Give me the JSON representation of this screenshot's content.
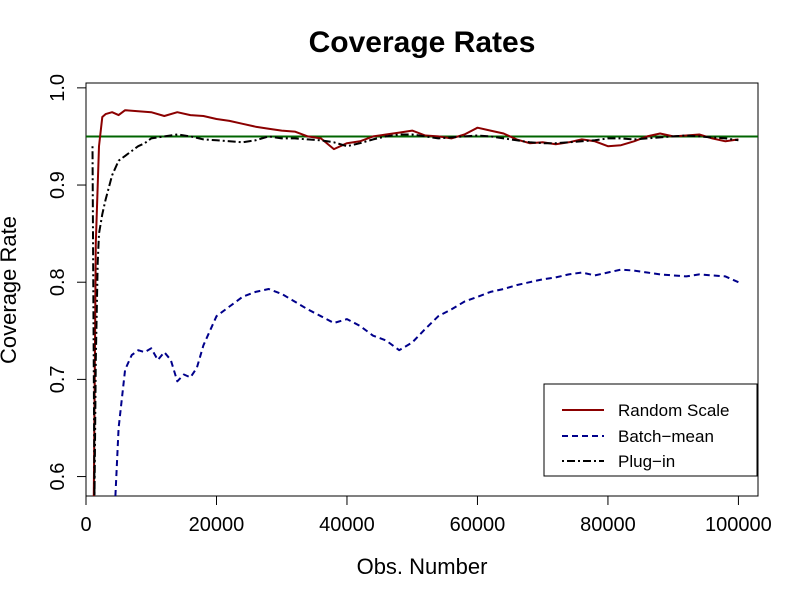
{
  "chart_data": {
    "type": "line",
    "title": "Coverage Rates",
    "xlabel": "Obs. Number",
    "ylabel": "Coverage Rate",
    "xlim": [
      0,
      103000
    ],
    "ylim": [
      0.58,
      1.005
    ],
    "xticks": [
      0,
      20000,
      40000,
      60000,
      80000,
      100000
    ],
    "xtick_labels": [
      "0",
      "20000",
      "40000",
      "60000",
      "80000",
      "100000"
    ],
    "yticks": [
      0.6,
      0.7,
      0.8,
      0.9,
      1.0
    ],
    "ytick_labels": [
      "0.6",
      "0.7",
      "0.8",
      "0.9",
      "1.0"
    ],
    "grid": false,
    "legend_position": "bottom-right",
    "reference_line": {
      "y": 0.95,
      "color": "#006400"
    },
    "series": [
      {
        "name": "Random Scale",
        "color": "#8b0000",
        "style": "solid",
        "x": [
          1200,
          1500,
          2000,
          2500,
          3000,
          4000,
          5000,
          6000,
          8000,
          10000,
          12000,
          14000,
          16000,
          18000,
          20000,
          22000,
          24000,
          26000,
          28000,
          30000,
          32000,
          34000,
          36000,
          38000,
          40000,
          42000,
          44000,
          46000,
          48000,
          50000,
          52000,
          54000,
          56000,
          58000,
          60000,
          62000,
          64000,
          66000,
          68000,
          70000,
          72000,
          74000,
          76000,
          78000,
          80000,
          82000,
          84000,
          86000,
          88000,
          90000,
          92000,
          94000,
          96000,
          98000,
          100000
        ],
        "values": [
          0.58,
          0.84,
          0.94,
          0.97,
          0.973,
          0.975,
          0.972,
          0.977,
          0.976,
          0.975,
          0.971,
          0.975,
          0.972,
          0.971,
          0.968,
          0.966,
          0.963,
          0.96,
          0.958,
          0.956,
          0.955,
          0.95,
          0.948,
          0.937,
          0.943,
          0.945,
          0.95,
          0.952,
          0.954,
          0.956,
          0.951,
          0.95,
          0.948,
          0.952,
          0.959,
          0.956,
          0.953,
          0.947,
          0.943,
          0.944,
          0.942,
          0.944,
          0.947,
          0.945,
          0.94,
          0.941,
          0.945,
          0.95,
          0.953,
          0.95,
          0.951,
          0.952,
          0.948,
          0.945,
          0.947
        ]
      },
      {
        "name": "Batch−mean",
        "color": "#00008b",
        "style": "dashed",
        "x": [
          4500,
          5000,
          6000,
          7000,
          8000,
          9000,
          10000,
          11000,
          12000,
          13000,
          14000,
          15000,
          16000,
          17000,
          18000,
          20000,
          22000,
          24000,
          26000,
          28000,
          30000,
          32000,
          34000,
          36000,
          38000,
          40000,
          42000,
          44000,
          46000,
          48000,
          50000,
          52000,
          54000,
          56000,
          58000,
          60000,
          62000,
          64000,
          66000,
          68000,
          70000,
          72000,
          74000,
          76000,
          78000,
          80000,
          82000,
          84000,
          86000,
          88000,
          90000,
          92000,
          94000,
          96000,
          98000,
          100000
        ],
        "values": [
          0.58,
          0.65,
          0.71,
          0.725,
          0.73,
          0.728,
          0.732,
          0.72,
          0.728,
          0.72,
          0.698,
          0.705,
          0.702,
          0.712,
          0.735,
          0.765,
          0.775,
          0.785,
          0.79,
          0.793,
          0.788,
          0.78,
          0.772,
          0.765,
          0.758,
          0.762,
          0.755,
          0.745,
          0.74,
          0.73,
          0.738,
          0.752,
          0.765,
          0.772,
          0.78,
          0.785,
          0.79,
          0.793,
          0.797,
          0.8,
          0.803,
          0.805,
          0.808,
          0.81,
          0.807,
          0.81,
          0.813,
          0.812,
          0.81,
          0.808,
          0.807,
          0.806,
          0.808,
          0.807,
          0.806,
          0.8
        ]
      },
      {
        "name": "Plug−in",
        "color": "#000000",
        "style": "dotdash",
        "x": [
          1000,
          1300,
          1500,
          1800,
          2000,
          2500,
          3000,
          4000,
          5000,
          6000,
          7000,
          8000,
          9000,
          10000,
          12000,
          14000,
          16000,
          18000,
          20000,
          22000,
          24000,
          26000,
          28000,
          30000,
          32000,
          34000,
          36000,
          38000,
          40000,
          42000,
          44000,
          46000,
          48000,
          50000,
          52000,
          54000,
          56000,
          58000,
          60000,
          62000,
          64000,
          66000,
          68000,
          70000,
          72000,
          74000,
          76000,
          78000,
          80000,
          82000,
          84000,
          86000,
          88000,
          90000,
          92000,
          94000,
          96000,
          98000,
          100000
        ],
        "values": [
          0.94,
          0.58,
          0.72,
          0.82,
          0.85,
          0.87,
          0.885,
          0.91,
          0.925,
          0.93,
          0.935,
          0.94,
          0.943,
          0.948,
          0.95,
          0.952,
          0.95,
          0.947,
          0.946,
          0.945,
          0.944,
          0.946,
          0.95,
          0.948,
          0.948,
          0.947,
          0.946,
          0.944,
          0.94,
          0.943,
          0.947,
          0.95,
          0.952,
          0.952,
          0.95,
          0.948,
          0.949,
          0.95,
          0.951,
          0.95,
          0.948,
          0.946,
          0.944,
          0.943,
          0.943,
          0.944,
          0.945,
          0.946,
          0.948,
          0.948,
          0.947,
          0.948,
          0.949,
          0.95,
          0.951,
          0.95,
          0.949,
          0.948,
          0.946
        ]
      }
    ]
  }
}
